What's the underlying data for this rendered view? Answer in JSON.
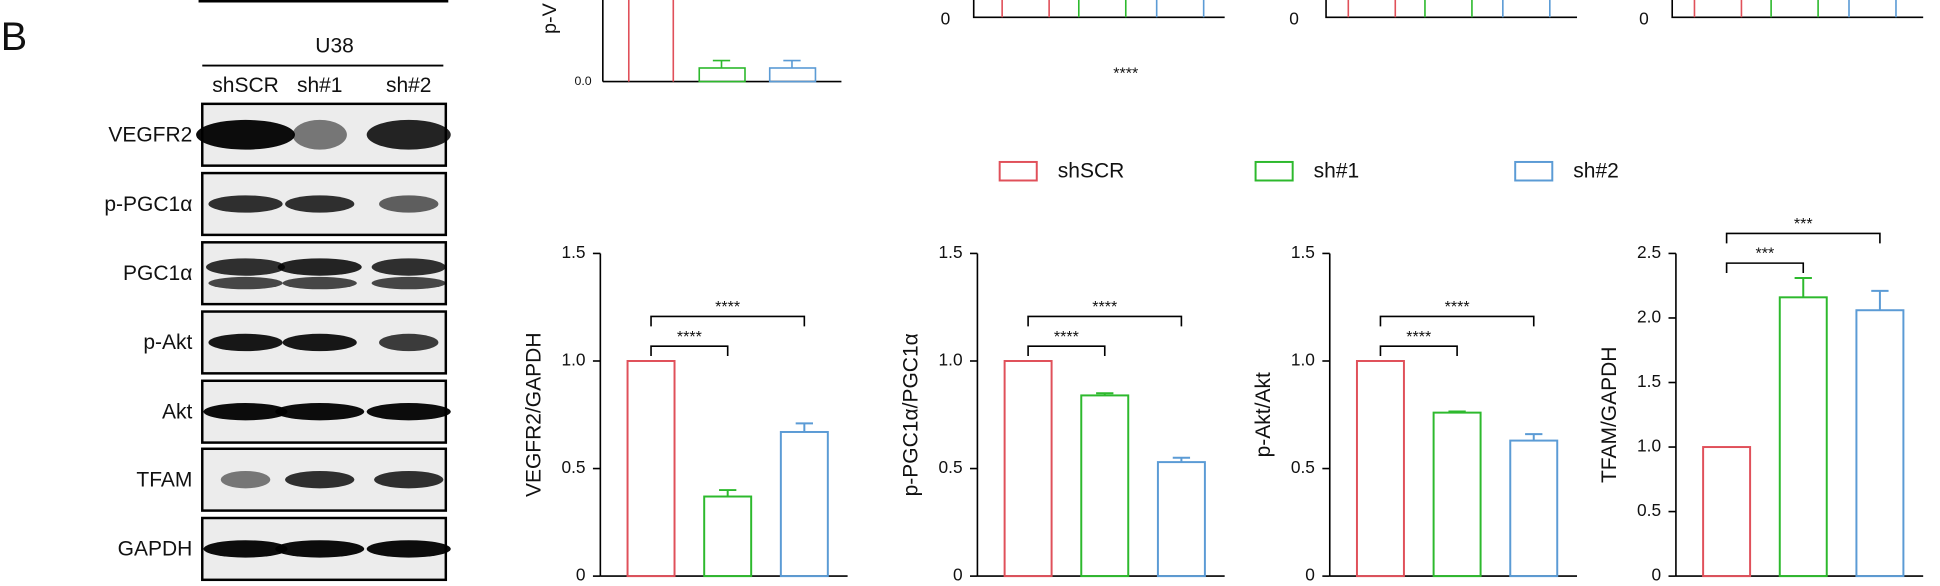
{
  "panel_label": "B",
  "blot": {
    "cell_line": "U38",
    "lanes": [
      "shSCR",
      "sh#1",
      "sh#2"
    ],
    "rows": [
      "VEGFR2",
      "p-PGC1α",
      "PGC1α",
      "p-Akt",
      "Akt",
      "TFAM",
      "GAPDH"
    ]
  },
  "top_fragment": {
    "ylabel": "p-V",
    "tick": "0.0",
    "stars": "****",
    "zero_ticks": [
      "0",
      "0",
      "0"
    ]
  },
  "legend": [
    {
      "name": "shSCR",
      "color": "#e0505a"
    },
    {
      "name": "sh#1",
      "color": "#2db92d"
    },
    {
      "name": "sh#2",
      "color": "#5b9bd5"
    }
  ],
  "chart_data": [
    {
      "type": "bar",
      "ylabel": "VEGFR2/GAPDH",
      "values": [
        1,
        0.37,
        0.67
      ],
      "errors": [
        0,
        0.03,
        0.04
      ],
      "ylim": [
        0,
        1.5
      ],
      "yticks": [
        0,
        0.5,
        {
          "value": 1,
          "label": "1.0"
        },
        1.5
      ],
      "significance": [
        {
          "from": 0,
          "to": 1,
          "label": "****"
        },
        {
          "from": 0,
          "to": 2,
          "label": "****"
        }
      ]
    },
    {
      "type": "bar",
      "ylabel": "p-PGC1α/PGC1α",
      "values": [
        1,
        0.84,
        0.53
      ],
      "errors": [
        0,
        0.01,
        0.02
      ],
      "ylim": [
        0,
        1.5
      ],
      "yticks": [
        0,
        0.5,
        {
          "value": 1,
          "label": "1.0"
        },
        1.5
      ],
      "significance": [
        {
          "from": 0,
          "to": 1,
          "label": "****"
        },
        {
          "from": 0,
          "to": 2,
          "label": "****"
        }
      ]
    },
    {
      "type": "bar",
      "ylabel": "p-Akt/Akt",
      "values": [
        1,
        0.76,
        0.63
      ],
      "errors": [
        0,
        0.005,
        0.03
      ],
      "ylim": [
        0,
        1.5
      ],
      "yticks": [
        0,
        0.5,
        {
          "value": 1,
          "label": "1.0"
        },
        1.5
      ],
      "significance": [
        {
          "from": 0,
          "to": 1,
          "label": "****"
        },
        {
          "from": 0,
          "to": 2,
          "label": "****"
        }
      ]
    },
    {
      "type": "bar",
      "ylabel": "TFAM/GAPDH",
      "values": [
        1,
        2.16,
        2.06
      ],
      "errors": [
        0,
        0.15,
        0.15
      ],
      "ylim": [
        0,
        2.5
      ],
      "yticks": [
        0,
        0.5,
        {
          "value": 1,
          "label": "1.0"
        },
        1.5,
        {
          "value": 2,
          "label": "2.0"
        },
        2.5
      ],
      "significance": [
        {
          "from": 0,
          "to": 1,
          "label": "***"
        },
        {
          "from": 0,
          "to": 2,
          "label": "***"
        }
      ]
    }
  ]
}
